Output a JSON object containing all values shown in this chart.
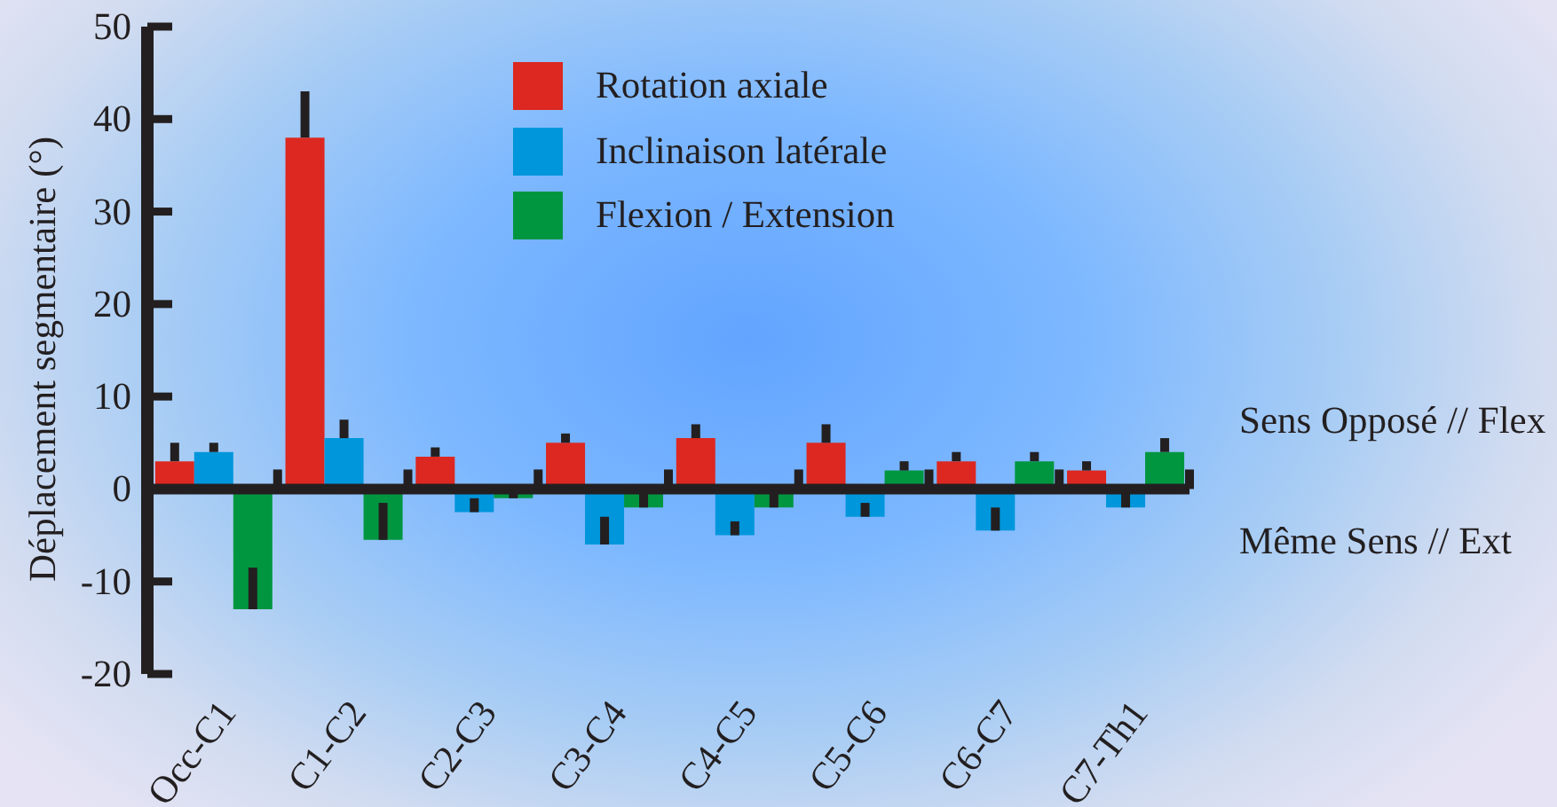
{
  "chart_data": {
    "type": "bar",
    "ylabel": "Déplacement segmentaire (°)",
    "categories": [
      "Occ-C1",
      "C1-C2",
      "C2-C3",
      "C3-C4",
      "C4-C5",
      "C5-C6",
      "C6-C7",
      "C7-Th1"
    ],
    "series": [
      {
        "name": "Rotation axiale",
        "color": "#dc2820",
        "values": [
          3,
          38,
          3.5,
          5,
          5.5,
          5,
          3,
          2
        ],
        "errors": [
          [
            3,
            5
          ],
          [
            38,
            43
          ],
          [
            3.5,
            4.5
          ],
          [
            5,
            6
          ],
          [
            5.5,
            7
          ],
          [
            5,
            7
          ],
          [
            3,
            4
          ],
          [
            2,
            3
          ]
        ]
      },
      {
        "name": "Inclinaison latérale",
        "color": "#0096dc",
        "values": [
          4,
          5.5,
          -2.5,
          -6,
          -5,
          -3,
          -4.5,
          -2
        ],
        "errors": [
          [
            4,
            5
          ],
          [
            5.5,
            7.5
          ],
          [
            -2.5,
            -1
          ],
          [
            -6,
            -3
          ],
          [
            -5,
            -3.5
          ],
          [
            -3,
            -1.5
          ],
          [
            -4.5,
            -2
          ],
          [
            -2,
            -0.5
          ]
        ]
      },
      {
        "name": "Flexion / Extension",
        "color": "#009640",
        "values": [
          -13,
          -5.5,
          -1,
          -2,
          -2,
          2,
          3,
          4
        ],
        "errors": [
          [
            -13,
            -8.5
          ],
          [
            -5.5,
            -1.5
          ],
          [
            -1,
            -0.5
          ],
          [
            -2,
            -0.5
          ],
          [
            -2,
            -0.5
          ],
          [
            2,
            3
          ],
          [
            3,
            4
          ],
          [
            4,
            5.5
          ]
        ]
      }
    ],
    "ylim": [
      -20,
      50
    ],
    "yticks": [
      -20,
      -10,
      0,
      10,
      20,
      30,
      40,
      50
    ],
    "legend": "top",
    "annotations": [
      "Sens Opposé // Flex",
      "Même Sens // Ext"
    ]
  }
}
